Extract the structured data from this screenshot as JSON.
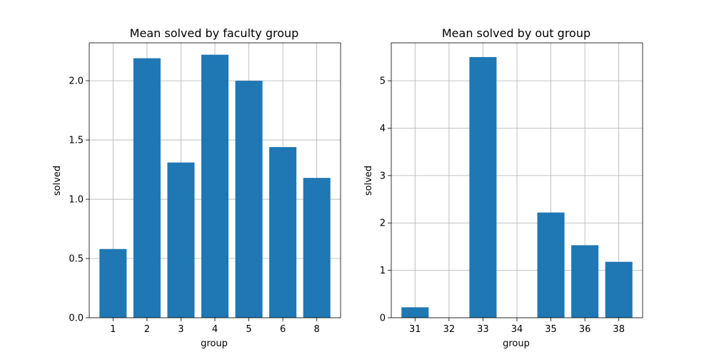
{
  "chart_data": [
    {
      "type": "bar",
      "title": "Mean solved by faculty group",
      "xlabel": "group",
      "ylabel": "solved",
      "categories": [
        "1",
        "2",
        "3",
        "4",
        "5",
        "6",
        "8"
      ],
      "values": [
        0.58,
        2.19,
        1.31,
        2.22,
        2.0,
        1.44,
        1.18
      ],
      "ylim": [
        0,
        2.32
      ],
      "yticks": [
        "0.0",
        "0.5",
        "1.0",
        "1.5",
        "2.0"
      ],
      "grid": true,
      "color": "#1f77b4"
    },
    {
      "type": "bar",
      "title": "Mean solved by out group",
      "xlabel": "group",
      "ylabel": "solved",
      "categories": [
        "31",
        "32",
        "33",
        "34",
        "35",
        "36",
        "38"
      ],
      "values": [
        0.22,
        0,
        5.5,
        0,
        2.22,
        1.53,
        1.18
      ],
      "ylim": [
        0,
        5.8
      ],
      "yticks": [
        "0",
        "1",
        "2",
        "3",
        "4",
        "5"
      ],
      "grid": true,
      "color": "#1f77b4"
    }
  ]
}
